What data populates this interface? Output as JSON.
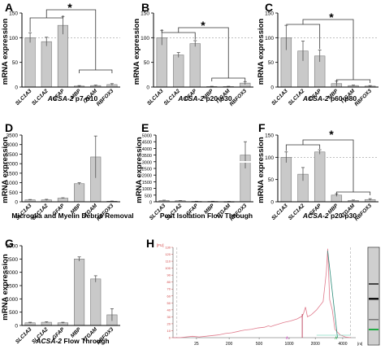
{
  "colors": {
    "bar": "#c9c9c9",
    "bar_stroke": "#7a7a7a",
    "axis": "#000000",
    "ref_line": "#9a9a9a",
    "electro_trace": "#e07a8c",
    "electro_axis": "#d04040",
    "marker_green": "#22aa44",
    "marker_pink": "#d050c0"
  },
  "chart_data": [
    {
      "id": "A",
      "panel_label": "A",
      "type": "bar",
      "ylabel": "mRNA expression",
      "categories": [
        "SLC1A3",
        "SLC1A2",
        "GFAP",
        "MBP",
        "ITGAM",
        "RBFOX3"
      ],
      "values": [
        100,
        92,
        125,
        2,
        3,
        5
      ],
      "errors": [
        10,
        9,
        18,
        1,
        1,
        2
      ],
      "yticks": [
        "0",
        "50",
        "100",
        "150"
      ],
      "ylim": [
        0,
        150
      ],
      "ref_line": 100,
      "caption_italic": "ACSA-2",
      "caption_rest": " p7-p10",
      "significance": "*"
    },
    {
      "id": "B",
      "panel_label": "B",
      "type": "bar",
      "ylabel": "mRNA expression",
      "categories": [
        "SLC1A3",
        "SLC1A2",
        "GFAP",
        "MBP",
        "ITGAM",
        "RBFOX3"
      ],
      "values": [
        100,
        65,
        88,
        1,
        1,
        8
      ],
      "errors": [
        15,
        5,
        6,
        0.5,
        0.5,
        3
      ],
      "yticks": [
        "0",
        "50",
        "100",
        "150"
      ],
      "ylim": [
        0,
        150
      ],
      "ref_line": 100,
      "caption_italic": "ACSA-2",
      "caption_rest": " p20-p30",
      "significance": "*"
    },
    {
      "id": "C",
      "panel_label": "C",
      "type": "bar",
      "ylabel": "mRNA expression",
      "categories": [
        "SLC1A3",
        "SLC1A2",
        "GFAP",
        "MBP",
        "ITGAM",
        "RBFOX3"
      ],
      "values": [
        100,
        73,
        63,
        7,
        3,
        2
      ],
      "errors": [
        25,
        20,
        12,
        5,
        1,
        1
      ],
      "yticks": [
        "0",
        "50",
        "100",
        "150"
      ],
      "ylim": [
        0,
        150
      ],
      "ref_line": 100,
      "caption_italic": "ACSA-2",
      "caption_rest": " p60-p80",
      "significance": "*"
    },
    {
      "id": "D",
      "panel_label": "D",
      "type": "bar",
      "ylabel": "mRNA expression",
      "categories": [
        "SLC1A3",
        "SLC1A2",
        "GFAP",
        "MBP",
        "ITGAM",
        "RBFOX3"
      ],
      "values": [
        100,
        100,
        190,
        950,
        2350,
        30
      ],
      "errors": [
        20,
        30,
        20,
        50,
        1100,
        10
      ],
      "yticks": [
        "0",
        "500",
        "1000",
        "1500",
        "2000",
        "2500",
        "3000",
        "3500"
      ],
      "ylim": [
        0,
        3500
      ],
      "caption_italic": "",
      "caption_rest": "Microglia and Myelin Debris Removal"
    },
    {
      "id": "E",
      "panel_label": "E",
      "type": "bar",
      "ylabel": "mRNA expression",
      "categories": [
        "SLC1A3",
        "SLC1A2",
        "GFAP",
        "MBP",
        "ITGAM",
        "RBFOX3"
      ],
      "values": [
        100,
        80,
        30,
        30,
        20,
        3500
      ],
      "errors": [
        20,
        15,
        10,
        10,
        5,
        1000
      ],
      "yticks": [
        "0",
        "500",
        "1000",
        "1500",
        "2000",
        "2500",
        "3000",
        "3500",
        "4000",
        "4500",
        "5000"
      ],
      "ylim": [
        0,
        5000
      ],
      "broken_axis": true,
      "caption_italic": "",
      "caption_rest": "Post Isolation Flow Through"
    },
    {
      "id": "F",
      "panel_label": "F",
      "type": "bar",
      "ylabel": "mRNA expression",
      "categories": [
        "SLC1A3",
        "SLC1A2",
        "GFAP",
        "MBP",
        "ITGAM",
        "RBFOX3"
      ],
      "values": [
        100,
        62,
        112,
        15,
        3,
        5
      ],
      "errors": [
        12,
        15,
        5,
        3,
        1,
        2
      ],
      "yticks": [
        "0",
        "50",
        "100",
        "150"
      ],
      "ylim": [
        0,
        150
      ],
      "ref_line": 100,
      "caption_italic": "ACSA-2",
      "caption_rest": " p20-p30",
      "significance": "*"
    },
    {
      "id": "G",
      "panel_label": "G",
      "type": "bar",
      "ylabel": "mRNA expression",
      "categories": [
        "SLC1A3",
        "SLC1A2",
        "GFAP",
        "MBP",
        "ITGAM",
        "RBFOX3"
      ],
      "values": [
        100,
        120,
        100,
        2500,
        1750,
        400
      ],
      "errors": [
        20,
        20,
        20,
        80,
        120,
        230
      ],
      "yticks": [
        "0",
        "500",
        "1000",
        "1500",
        "2000",
        "2500",
        "3000"
      ],
      "ylim": [
        0,
        3000
      ],
      "caption_italic": "ACSA-2",
      "caption_rest": " Flow Through"
    },
    {
      "id": "H",
      "panel_label": "H",
      "type": "line",
      "y_unit": "[FU]",
      "yticks": [
        "0",
        "10",
        "20",
        "30",
        "40",
        "50",
        "60",
        "70",
        "80",
        "90",
        "100",
        "110",
        "120",
        "130"
      ],
      "ylim": [
        0,
        130
      ],
      "x_unit": "[nt]",
      "xticks": [
        "25",
        "200",
        "500",
        "1000",
        "2000",
        "4000"
      ],
      "x": [
        0,
        0.5,
        1,
        1.5,
        2,
        2.5,
        3,
        3.5,
        4,
        4.5,
        5,
        5.2,
        5.5,
        6,
        6.5,
        7,
        7.3,
        7.5,
        7.8,
        8,
        8.5,
        9,
        9.5,
        9.9,
        10,
        10.15,
        10.3,
        10.6,
        11,
        11.5,
        11.75,
        11.85,
        12,
        12.2,
        12.4,
        12.8,
        13.2,
        13.6
      ],
      "y": [
        0,
        0,
        1,
        2,
        1,
        2,
        3,
        4,
        6,
        7,
        9,
        10,
        11,
        12,
        14,
        15,
        17,
        16,
        18,
        19,
        22,
        24,
        27,
        31,
        35,
        44,
        30,
        33,
        40,
        52,
        95,
        128,
        55,
        40,
        12,
        4,
        1,
        0
      ]
    }
  ]
}
